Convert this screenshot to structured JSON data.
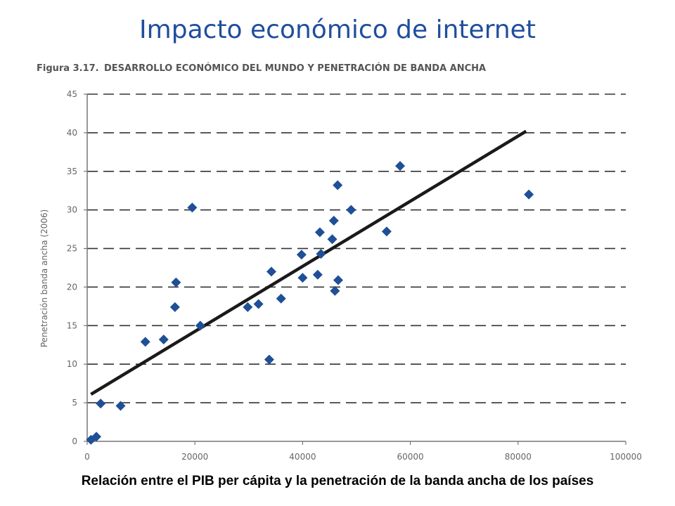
{
  "slide": {
    "title": "Impacto económico de internet",
    "caption": "Relación entre el PIB per cápita y la penetración de la banda ancha de los países"
  },
  "figure": {
    "label": "Figura 3.17.",
    "heading": "DESARROLLO ECONÓMICO DEL MUNDO Y PENETRACIÓN DE BANDA ANCHA"
  },
  "colors": {
    "title": "#1f4e9c",
    "marker": "#1f4f96",
    "trendline": "#1a1a1a",
    "grid": "#333333",
    "axis": "#777777"
  },
  "chart_data": {
    "type": "scatter",
    "title": "DESARROLLO ECONÓMICO DEL MUNDO Y PENETRACIÓN DE BANDA ANCHA",
    "xlabel": "",
    "ylabel": "Penetración banda ancha (2006)",
    "xlim": [
      0,
      100000
    ],
    "ylim": [
      0,
      45
    ],
    "xticks": [
      0,
      20000,
      40000,
      60000,
      80000,
      100000
    ],
    "yticks": [
      0,
      5,
      10,
      15,
      20,
      25,
      30,
      35,
      40,
      45
    ],
    "grid": "horizontal dashed",
    "marker": "diamond",
    "points": [
      {
        "x": 700,
        "y": 0.2
      },
      {
        "x": 1700,
        "y": 0.6
      },
      {
        "x": 2500,
        "y": 4.9
      },
      {
        "x": 6200,
        "y": 4.6
      },
      {
        "x": 10800,
        "y": 12.9
      },
      {
        "x": 14200,
        "y": 13.2
      },
      {
        "x": 16300,
        "y": 17.4
      },
      {
        "x": 16500,
        "y": 20.6
      },
      {
        "x": 19500,
        "y": 30.3
      },
      {
        "x": 21000,
        "y": 15.0
      },
      {
        "x": 29800,
        "y": 17.4
      },
      {
        "x": 31800,
        "y": 17.8
      },
      {
        "x": 33800,
        "y": 10.6
      },
      {
        "x": 34200,
        "y": 22.0
      },
      {
        "x": 36000,
        "y": 18.5
      },
      {
        "x": 39800,
        "y": 24.2
      },
      {
        "x": 40000,
        "y": 21.2
      },
      {
        "x": 42800,
        "y": 21.6
      },
      {
        "x": 43200,
        "y": 27.1
      },
      {
        "x": 43400,
        "y": 24.3
      },
      {
        "x": 45500,
        "y": 26.2
      },
      {
        "x": 45800,
        "y": 28.6
      },
      {
        "x": 46000,
        "y": 19.5
      },
      {
        "x": 46500,
        "y": 33.2
      },
      {
        "x": 46600,
        "y": 20.9
      },
      {
        "x": 49000,
        "y": 30.0
      },
      {
        "x": 55600,
        "y": 27.2
      },
      {
        "x": 58100,
        "y": 35.7
      },
      {
        "x": 82000,
        "y": 32.0
      }
    ],
    "trendline": {
      "x": [
        700,
        81500
      ],
      "y": [
        6.1,
        40.2
      ]
    }
  }
}
